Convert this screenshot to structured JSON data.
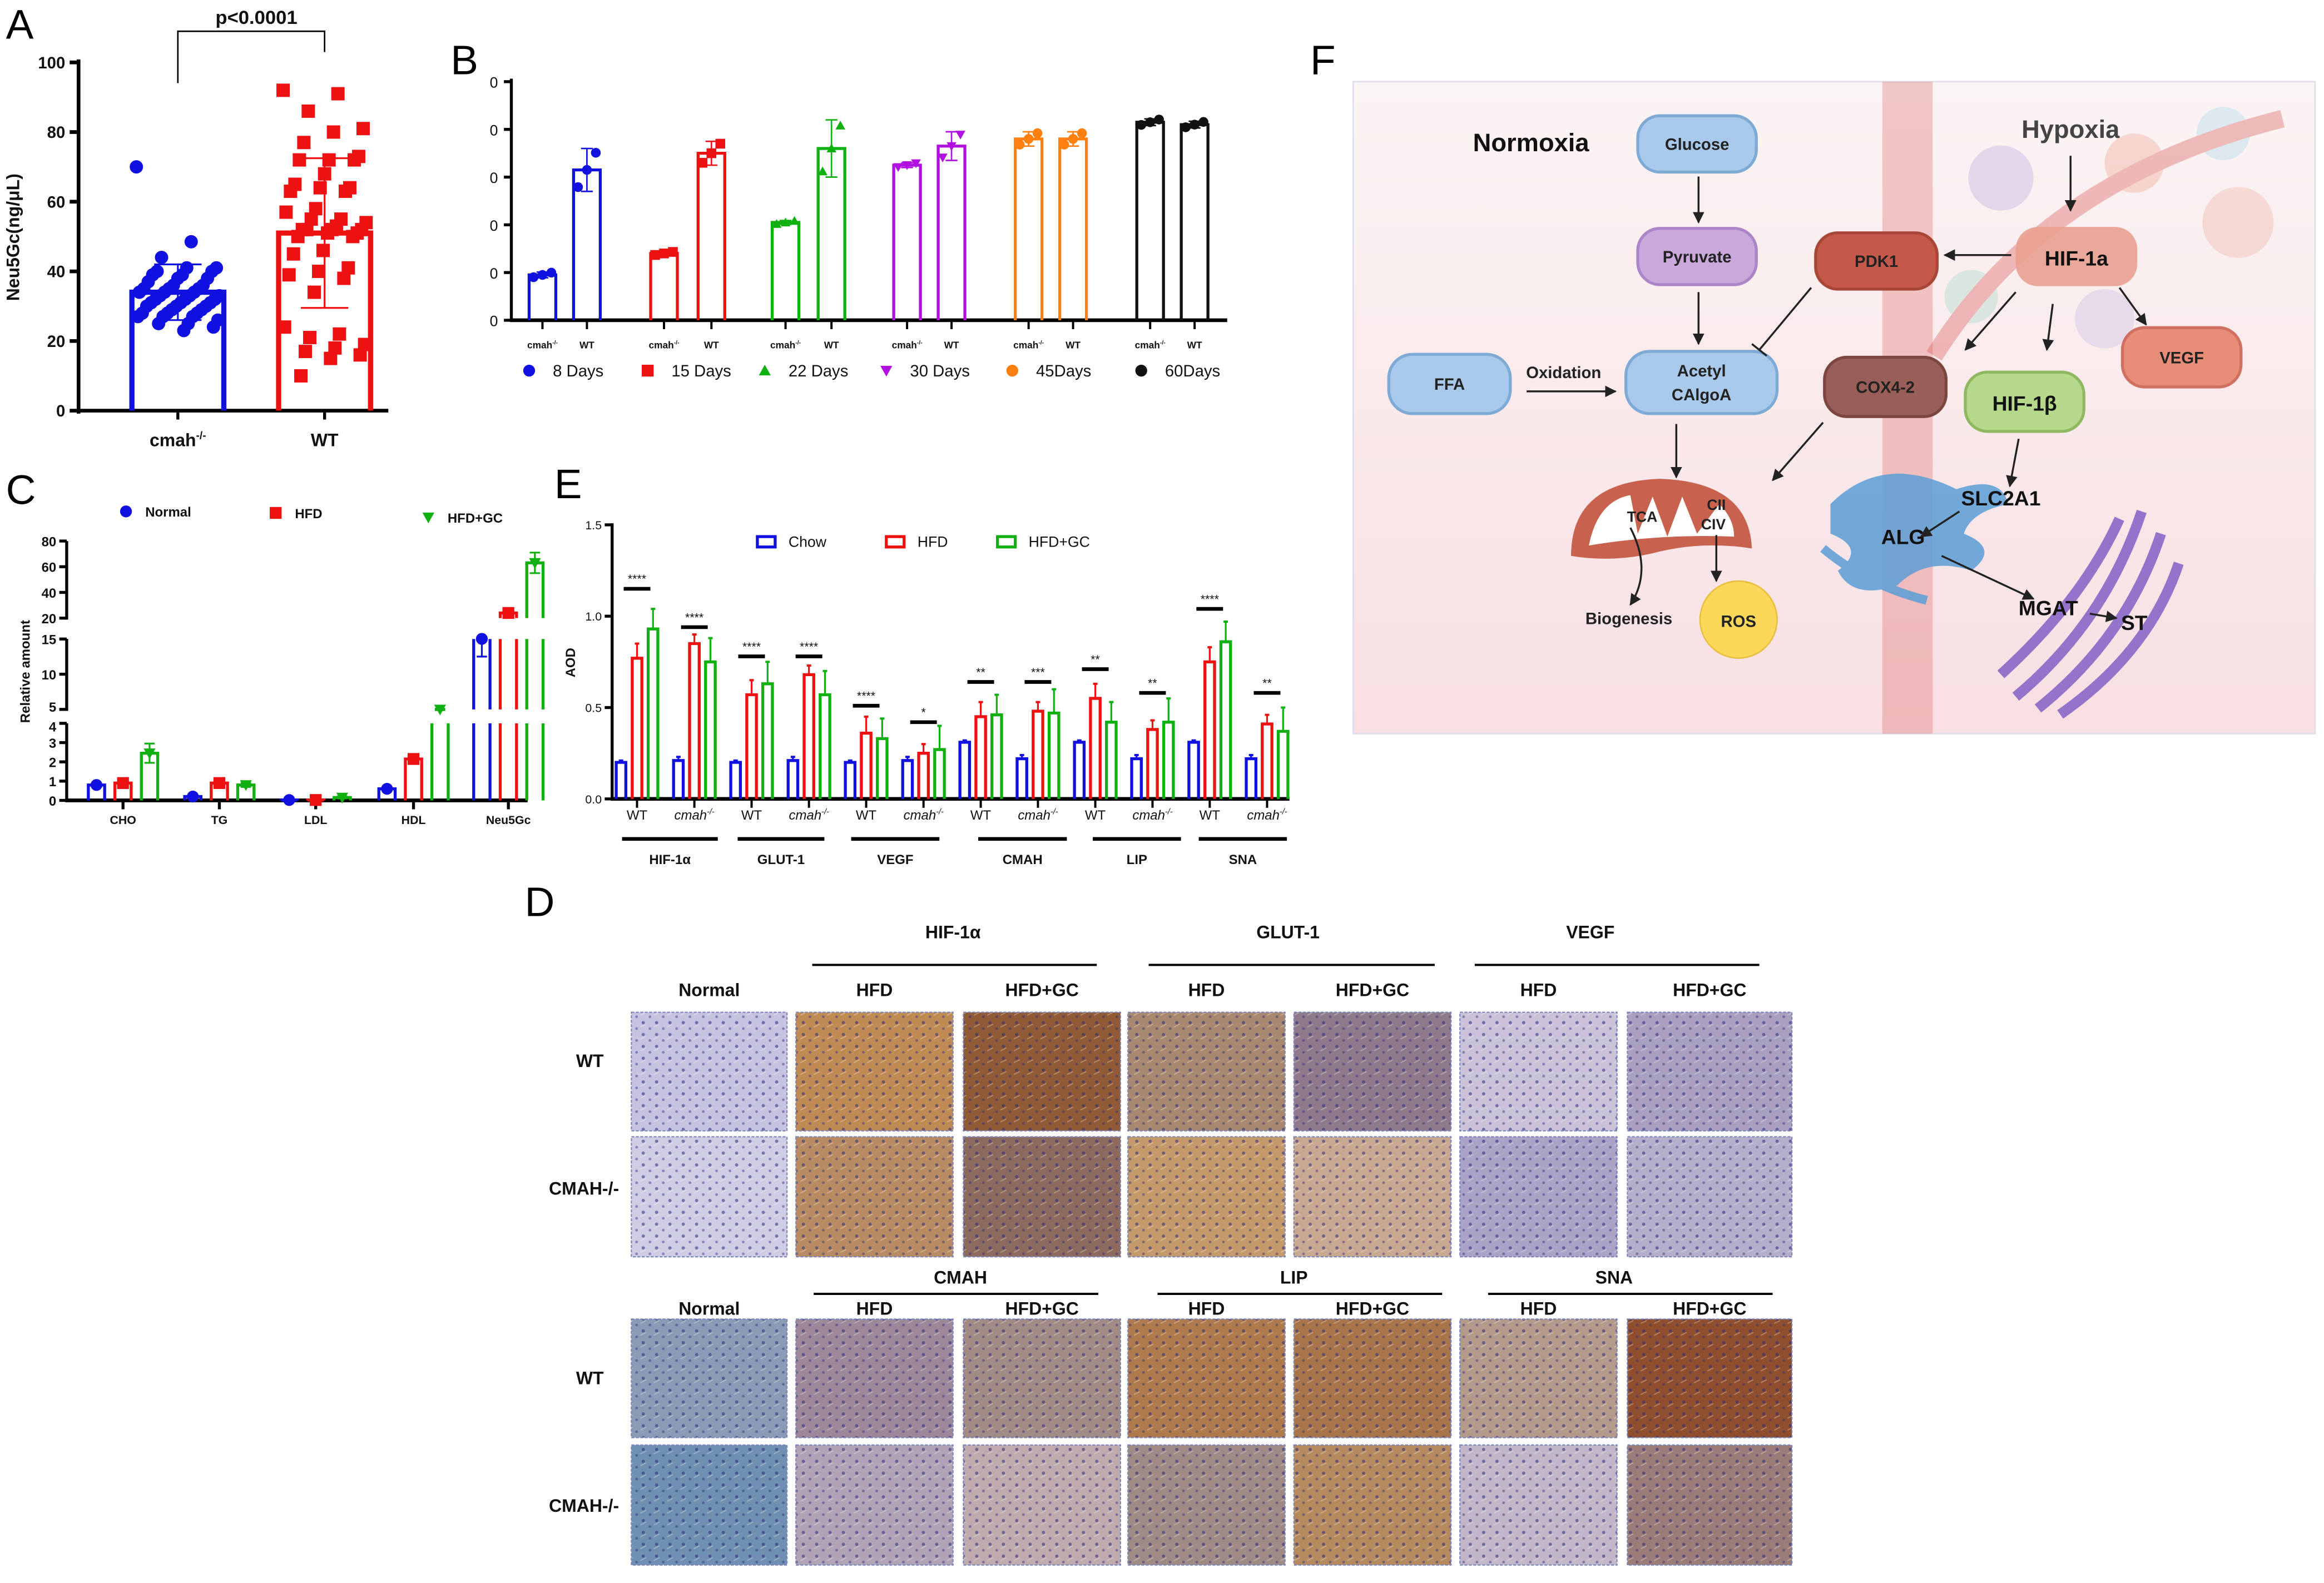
{
  "panel_labels": {
    "A": "A",
    "B": "B",
    "C": "C",
    "D": "D",
    "E": "E",
    "F": "F"
  },
  "chart_data": [
    {
      "panel": "A",
      "type": "bar",
      "ylabel": "Neu5Gc(ng/μL)",
      "ylim": [
        0,
        100
      ],
      "yticks": [
        0,
        20,
        40,
        60,
        80,
        100
      ],
      "annotation": "p<0.0001",
      "categories": [
        {
          "label": "cmah",
          "sup": "-/-"
        },
        {
          "label": "WT"
        }
      ],
      "series": [
        {
          "category": "cmah-/-",
          "color": "#1010e0",
          "marker": "circle",
          "mean": 34,
          "sd": 8,
          "points": [
            70,
            48.5,
            44,
            41,
            41,
            40,
            40,
            39,
            39,
            38,
            38,
            37,
            36,
            36,
            35,
            35,
            35,
            34,
            34,
            34,
            33,
            33,
            33,
            32,
            32,
            32,
            31,
            31,
            31,
            30,
            30,
            30,
            29,
            29,
            28,
            28,
            28,
            27,
            27,
            27,
            26,
            25,
            25,
            24,
            23
          ]
        },
        {
          "category": "WT",
          "color": "#ee1111",
          "marker": "square",
          "mean": 51,
          "sd": 21.5,
          "points": [
            92,
            91,
            86,
            81,
            80,
            77,
            73,
            72,
            72,
            72,
            68,
            65,
            64,
            64,
            63,
            63,
            58,
            57,
            55,
            55,
            54,
            53,
            52,
            52,
            52,
            52,
            51,
            51,
            50,
            50,
            46,
            45,
            41,
            40,
            39,
            38,
            34,
            24,
            22,
            21,
            19,
            18,
            17,
            16,
            15,
            10
          ]
        }
      ]
    },
    {
      "panel": "B",
      "type": "bar",
      "ytick_labels": [
        "0",
        "0",
        "0",
        "0",
        "0",
        "0"
      ],
      "ylim": [
        0,
        5
      ],
      "xtick_labels": {
        "cmah": "cmah",
        "cmah_sup": "-/-",
        "wt": "WT"
      },
      "legend_position": "bottom",
      "series": [
        {
          "name": "8 Days",
          "color": "#1010e0",
          "marker": "circle",
          "cmah": 0.95,
          "cmah_err": 0.06,
          "wt": 3.15,
          "wt_err": 0.45
        },
        {
          "name": "15 Days",
          "color": "#ee1111",
          "marker": "square",
          "cmah": 1.4,
          "cmah_err": 0.04,
          "wt": 3.5,
          "wt_err": 0.25
        },
        {
          "name": "22 Days",
          "color": "#10b010",
          "marker": "triangle-up",
          "cmah": 2.05,
          "cmah_err": 0.04,
          "wt": 3.6,
          "wt_err": 0.6
        },
        {
          "name": "30 Days",
          "color": "#b010e0",
          "marker": "triangle-down",
          "cmah": 3.25,
          "cmah_err": 0.05,
          "wt": 3.65,
          "wt_err": 0.3
        },
        {
          "name": "45Days",
          "color": "#ff8010",
          "marker": "circle",
          "cmah": 3.8,
          "cmah_err": 0.15,
          "wt": 3.8,
          "wt_err": 0.15
        },
        {
          "name": "60Days",
          "color": "#111111",
          "marker": "circle",
          "cmah": 4.15,
          "cmah_err": 0.07,
          "wt": 4.1,
          "wt_err": 0.07
        }
      ]
    },
    {
      "panel": "C",
      "type": "bar",
      "ylabel": "Relative amount",
      "axis_breaks": [
        [
          0,
          4
        ],
        [
          5,
          15
        ],
        [
          20,
          80
        ]
      ],
      "yticks": [
        [
          0,
          1,
          2,
          3,
          4
        ],
        [
          5,
          10,
          15
        ],
        [
          20,
          40,
          60,
          80
        ]
      ],
      "categories": [
        "CHO",
        "TG",
        "LDL",
        "HDL",
        "Neu5Gc"
      ],
      "legend_position": "top",
      "series": [
        {
          "name": "Normal",
          "color": "#1010e0",
          "marker": "circle",
          "values": [
            0.8,
            0.2,
            0.02,
            0.6,
            15.5
          ],
          "errors": [
            0.05,
            0.05,
            0.02,
            0.1,
            3.0
          ]
        },
        {
          "name": "HFD",
          "color": "#ee1111",
          "marker": "square",
          "values": [
            0.9,
            0.9,
            0.02,
            2.15,
            24
          ],
          "errors": [
            0.1,
            0.15,
            0.02,
            0.15,
            2
          ]
        },
        {
          "name": "HFD+GC",
          "color": "#10b010",
          "marker": "triangle-down",
          "values": [
            2.45,
            0.8,
            0.15,
            5.0,
            63
          ],
          "errors": [
            0.5,
            0.1,
            0.05,
            0.1,
            8
          ]
        }
      ]
    },
    {
      "panel": "E",
      "type": "bar",
      "ylabel": "AOD",
      "ylim": [
        0,
        1.5
      ],
      "yticks": [
        "0.0",
        "0.5",
        "1.0",
        "1.5"
      ],
      "legend_position": "top",
      "groups": [
        "HIF-1α",
        "GLUT-1",
        "VEGF",
        "CMAH",
        "LIP",
        "SNA"
      ],
      "subgroups": [
        {
          "label": "WT",
          "sup": ""
        },
        {
          "label": "cmah",
          "sup": "-/-"
        }
      ],
      "series": [
        {
          "name": "Chow",
          "color": "#1010e0",
          "values": [
            0.2,
            0.21,
            0.2,
            0.21,
            0.2,
            0.21,
            0.31,
            0.22,
            0.31,
            0.22,
            0.31,
            0.22
          ],
          "errors": [
            0.01,
            0.02,
            0.01,
            0.02,
            0.01,
            0.02,
            0.01,
            0.02,
            0.01,
            0.02,
            0.01,
            0.02
          ]
        },
        {
          "name": "HFD",
          "color": "#ee1111",
          "values": [
            0.77,
            0.85,
            0.57,
            0.68,
            0.36,
            0.25,
            0.45,
            0.48,
            0.55,
            0.38,
            0.75,
            0.41
          ],
          "errors": [
            0.08,
            0.05,
            0.08,
            0.05,
            0.09,
            0.05,
            0.08,
            0.05,
            0.08,
            0.05,
            0.08,
            0.05
          ]
        },
        {
          "name": "HFD+GC",
          "color": "#10b010",
          "values": [
            0.93,
            0.75,
            0.63,
            0.57,
            0.33,
            0.27,
            0.46,
            0.47,
            0.42,
            0.42,
            0.86,
            0.37
          ],
          "errors": [
            0.11,
            0.13,
            0.12,
            0.13,
            0.11,
            0.13,
            0.11,
            0.13,
            0.11,
            0.13,
            0.11,
            0.13
          ]
        }
      ],
      "significance": [
        {
          "label": "****",
          "y": 1.15
        },
        {
          "label": "****",
          "y": 0.94
        },
        {
          "label": "****",
          "y": 0.78
        },
        {
          "label": "****",
          "y": 0.78
        },
        {
          "label": "****",
          "y": 0.51
        },
        {
          "label": "*",
          "y": 0.42
        },
        {
          "label": "**",
          "y": 0.64
        },
        {
          "label": "***",
          "y": 0.64
        },
        {
          "label": "**",
          "y": 0.71
        },
        {
          "label": "**",
          "y": 0.58
        },
        {
          "label": "****",
          "y": 1.04
        },
        {
          "label": "**",
          "y": 0.58
        }
      ]
    }
  ],
  "panel_D": {
    "blocks": [
      {
        "markers": [
          "HIF-1α",
          "GLUT-1",
          "VEGF"
        ],
        "columns": [
          "Normal",
          "HFD",
          "HFD+GC",
          "HFD",
          "HFD+GC",
          "HFD",
          "HFD+GC"
        ],
        "rows": [
          "WT",
          "CMAH-/-"
        ],
        "tints": [
          [
            "#c5c3df",
            "#c08a55",
            "#8f5a35",
            "#a8896f",
            "#8e7a8a",
            "#c9c2d9",
            "#a9a0c0"
          ],
          [
            "#cfcde3",
            "#b98b62",
            "#8d6a5e",
            "#c49a6a",
            "#c9a891",
            "#aaa3c6",
            "#b5aecb"
          ]
        ]
      },
      {
        "markers": [
          "CMAH",
          "LIP",
          "SNA"
        ],
        "columns": [
          "Normal",
          "HFD",
          "HFD+GC",
          "HFD",
          "HFD+GC",
          "HFD",
          "HFD+GC"
        ],
        "rows": [
          "WT",
          "CMAH-/-"
        ],
        "tints": [
          [
            "#8a9bb5",
            "#9c8899",
            "#a38b85",
            "#b07b4c",
            "#a8754a",
            "#b39a8a",
            "#8f4f2e"
          ],
          [
            "#6f90b0",
            "#b0a3b5",
            "#bfaaae",
            "#a08a86",
            "#b58a5f",
            "#c2b7c8",
            "#9c7c78"
          ]
        ]
      }
    ]
  },
  "panel_F": {
    "normoxia": "Normoxia",
    "hypoxia": "Hypoxia",
    "glucose": "Glucose",
    "pyruvate": "Pyruvate",
    "pdk1": "PDK1",
    "hif1a": "HIF-1a",
    "ffa": "FFA",
    "oxidation": "Oxidation",
    "acetyl_1": "Acetyl",
    "acetyl_2": "CAlgoA",
    "cox": "COX4-2",
    "hif1b": "HIF-1β",
    "vegf": "VEGF",
    "tca": "TCA",
    "cii": "CII",
    "civ": "CIV",
    "biogenesis": "Biogenesis",
    "ros": "ROS",
    "slc2a1": "SLC2A1",
    "alg": "ALG",
    "mgat": "MGAT",
    "st": "ST"
  }
}
